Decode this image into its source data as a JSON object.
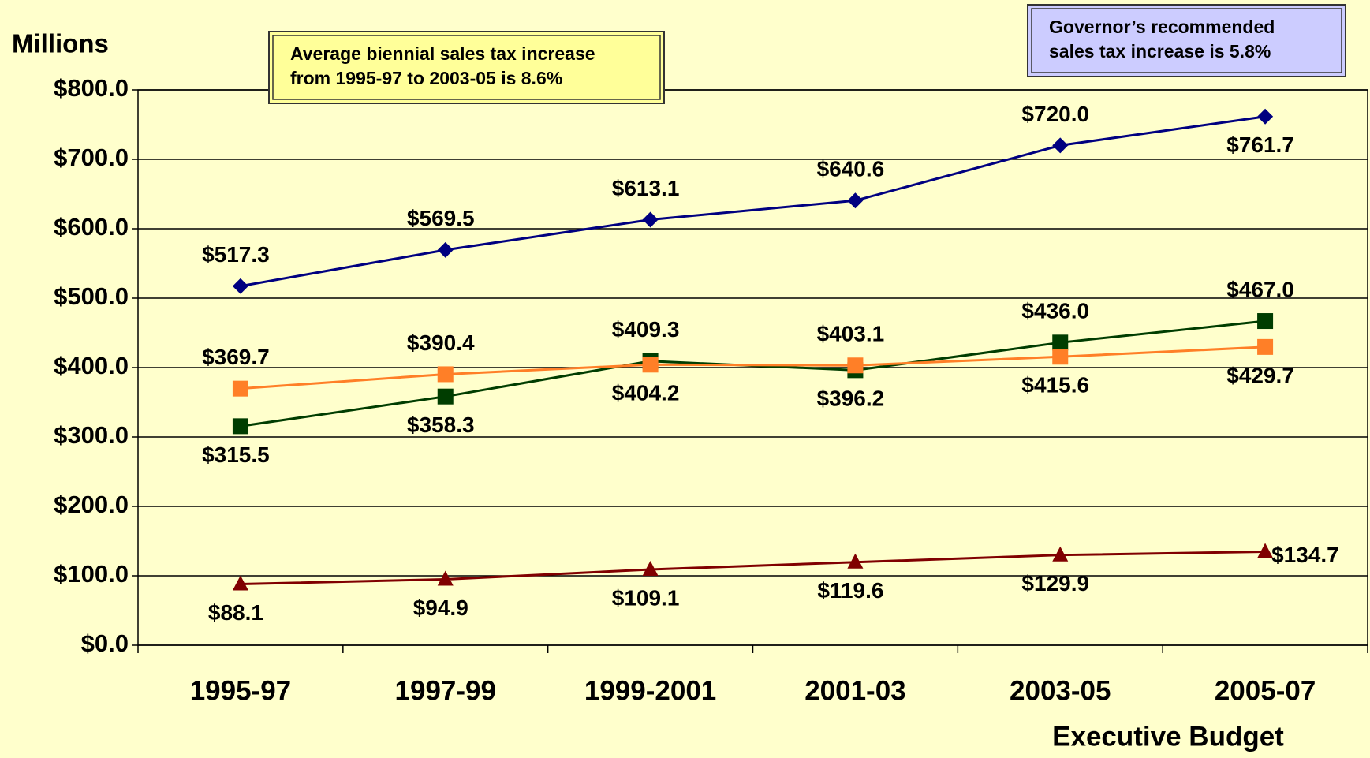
{
  "chart_data": {
    "type": "line",
    "y_label": "Millions",
    "x_note": "Executive Budget",
    "annotations": [
      "Average biennial sales tax increase\nfrom 1995-97 to 2003-05 is 8.6%",
      "Governor’s recommended\nsales tax increase is 5.8%"
    ],
    "categories": [
      "1995-97",
      "1997-99",
      "1999-2001",
      "2001-03",
      "2003-05",
      "2005-07"
    ],
    "series": [
      {
        "color": "#000080",
        "marker": "diamond",
        "values": [
          517.3,
          569.5,
          613.1,
          640.6,
          720.0,
          761.7
        ],
        "value_labels": [
          "$517.3",
          "$569.5",
          "$613.1",
          "$640.6",
          "$720.0",
          "$761.7"
        ]
      },
      {
        "color": "#003d00",
        "marker": "square",
        "values": [
          315.5,
          358.3,
          409.3,
          396.2,
          436.0,
          467.0
        ],
        "value_labels": [
          "$315.5",
          "$358.3",
          "$409.3",
          "$396.2",
          "$436.0",
          "$467.0"
        ]
      },
      {
        "color": "#ff7f27",
        "marker": "square",
        "values": [
          369.7,
          390.4,
          404.2,
          403.1,
          415.6,
          429.7
        ],
        "value_labels": [
          "$369.7",
          "$390.4",
          "$404.2",
          "$403.1",
          "$415.6",
          "$429.7"
        ]
      },
      {
        "color": "#800000",
        "marker": "triangle",
        "values": [
          88.1,
          94.9,
          109.1,
          119.6,
          129.9,
          134.7
        ],
        "value_labels": [
          "$88.1",
          "$94.9",
          "$109.1",
          "$119.6",
          "$129.9",
          "$134.7"
        ]
      }
    ],
    "ylim": [
      0,
      800
    ],
    "yticks": [
      {
        "value": 0,
        "label": "$0.0"
      },
      {
        "value": 100,
        "label": "$100.0"
      },
      {
        "value": 200,
        "label": "$200.0"
      },
      {
        "value": 300,
        "label": "$300.0"
      },
      {
        "value": 400,
        "label": "$400.0"
      },
      {
        "value": 500,
        "label": "$500.0"
      },
      {
        "value": 600,
        "label": "$600.0"
      },
      {
        "value": 700,
        "label": "$700.0"
      },
      {
        "value": 800,
        "label": "$800.0"
      }
    ],
    "grid": true
  }
}
